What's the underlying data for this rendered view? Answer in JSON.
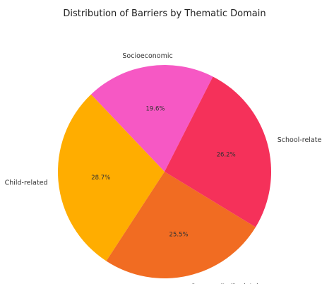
{
  "chart_data": {
    "type": "pie",
    "title": "Distribution of Barriers by Thematic Domain",
    "start_angle_deg": 63,
    "direction": "counterclockwise",
    "slices": [
      {
        "label": "Socioeconomic",
        "value": 19.6,
        "pct_label": "19.6%",
        "color": "#f658c4"
      },
      {
        "label": "Child-related",
        "value": 28.7,
        "pct_label": "28.7%",
        "color": "#ffad00"
      },
      {
        "label": "Community/Societal",
        "value": 25.5,
        "pct_label": "25.5%",
        "color": "#f16c22"
      },
      {
        "label": "School-related",
        "value": 26.2,
        "pct_label": "26.2%",
        "color": "#f5315a"
      }
    ]
  }
}
